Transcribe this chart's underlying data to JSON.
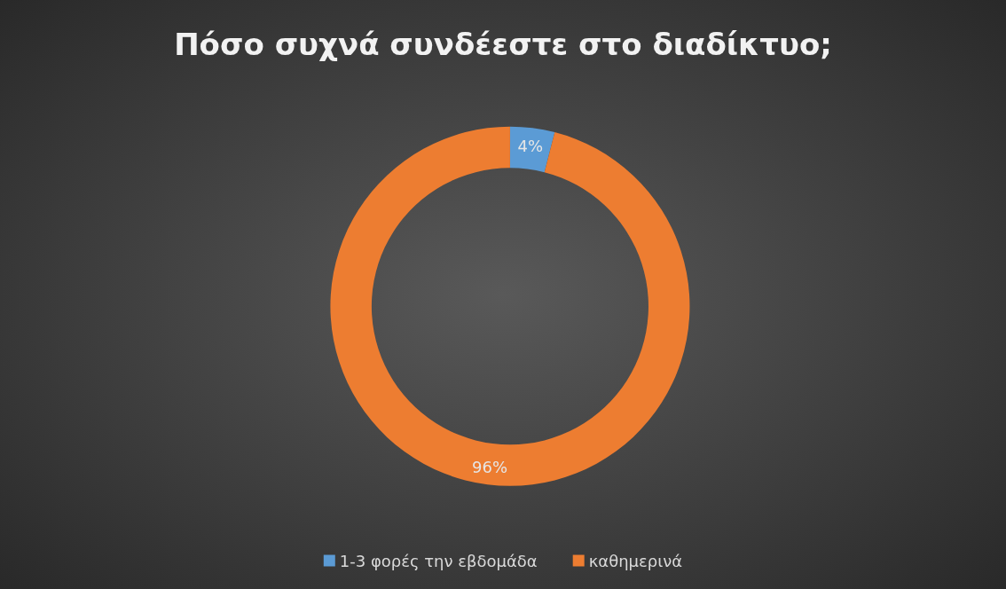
{
  "chart_data": {
    "type": "donut",
    "title": "Πόσο συχνά συνδέεστε στο διαδίκτυο;",
    "categories": [
      "1-3 φορές την εβδομάδα",
      "καθημερινά"
    ],
    "values": [
      4,
      96
    ],
    "colors": [
      "#5b9bd5",
      "#ed7d31"
    ],
    "value_labels": [
      "4%",
      "96%"
    ],
    "legend": "bottom"
  }
}
